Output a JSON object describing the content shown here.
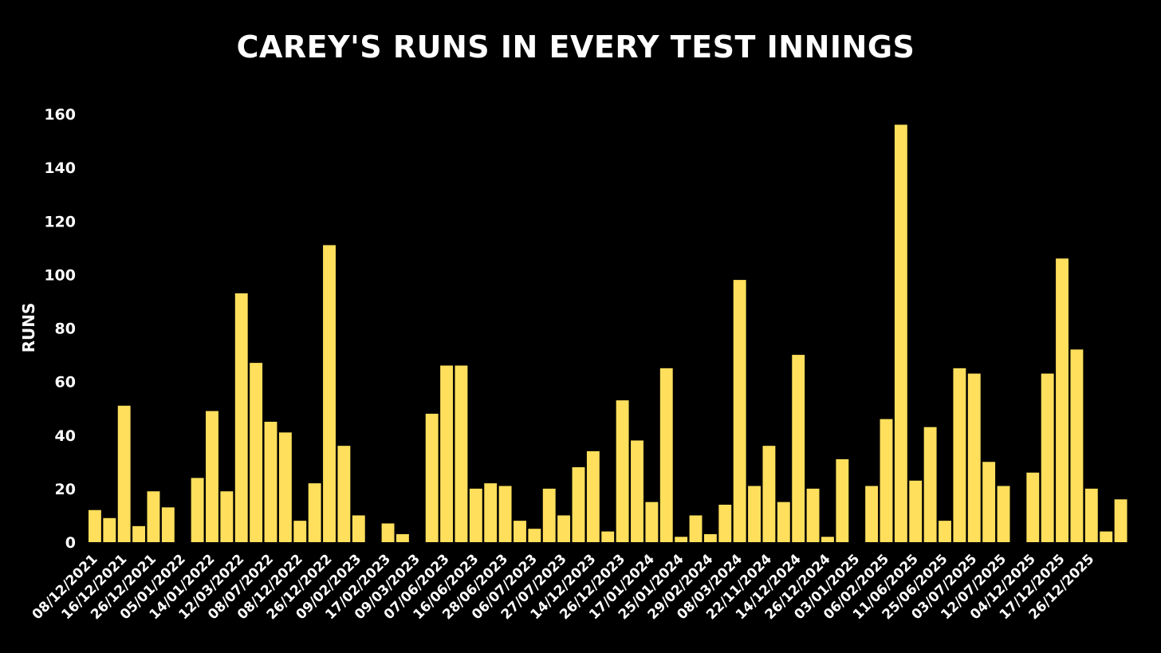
{
  "colors": {
    "background": "#000000",
    "bar": "#ffdf5c",
    "text": "#ffffff"
  },
  "chart_data": {
    "type": "bar",
    "title": "CAREY'S RUNS IN EVERY TEST INNINGS",
    "xlabel": "",
    "ylabel": "RUNS",
    "ylim": [
      0,
      160
    ],
    "yticks": [
      0,
      20,
      40,
      60,
      80,
      100,
      120,
      140,
      160
    ],
    "grid": false,
    "legend": "none",
    "values": [
      12,
      9,
      51,
      6,
      19,
      13,
      null,
      24,
      49,
      19,
      93,
      67,
      45,
      41,
      8,
      22,
      111,
      36,
      10,
      null,
      7,
      3,
      null,
      48,
      66,
      66,
      20,
      22,
      21,
      8,
      5,
      20,
      10,
      28,
      34,
      4,
      53,
      38,
      15,
      65,
      2,
      10,
      3,
      14,
      98,
      21,
      36,
      15,
      70,
      20,
      2,
      31,
      null,
      21,
      46,
      156,
      23,
      43,
      8,
      65,
      63,
      30,
      21,
      null,
      26,
      63,
      106,
      72,
      20,
      4,
      16
    ],
    "tick_labels": [
      "08/12/2021",
      "16/12/2021",
      "26/12/2021",
      "05/01/2022",
      "14/01/2022",
      "12/03/2022",
      "08/07/2022",
      "08/12/2022",
      "26/12/2022",
      "09/02/2023",
      "17/02/2023",
      "09/03/2023",
      "07/06/2023",
      "16/06/2023",
      "28/06/2023",
      "06/07/2023",
      "27/07/2023",
      "14/12/2023",
      "26/12/2023",
      "17/01/2024",
      "25/01/2024",
      "29/02/2024",
      "08/03/2024",
      "22/11/2024",
      "14/12/2024",
      "26/12/2024",
      "03/01/2025",
      "06/02/2025",
      "11/06/2025",
      "25/06/2025",
      "03/07/2025",
      "12/07/2025",
      "04/12/2025",
      "17/12/2025",
      "26/12/2025"
    ]
  }
}
